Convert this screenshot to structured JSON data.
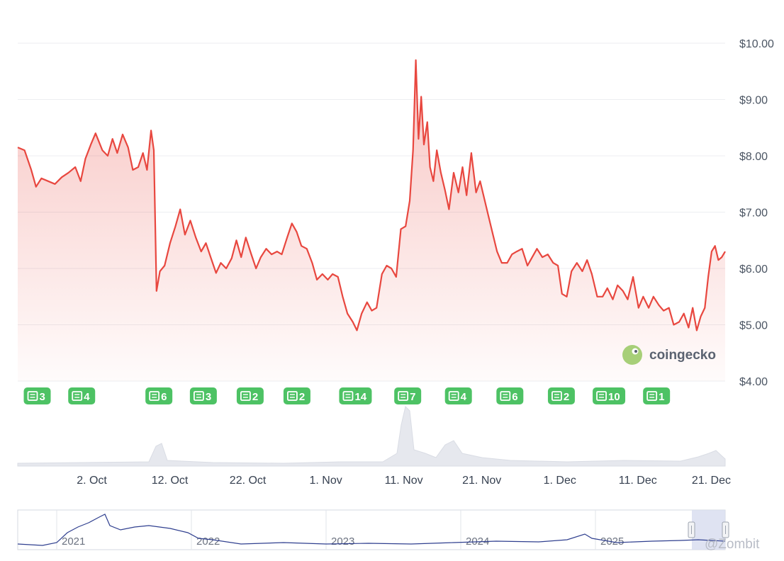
{
  "chart_data": {
    "type": "line",
    "y_axis": {
      "ticks": [
        "$10.00",
        "$9.00",
        "$8.00",
        "$7.00",
        "$6.00",
        "$5.00",
        "$4.00"
      ],
      "tick_values": [
        10,
        9,
        8,
        7,
        6,
        5,
        4
      ],
      "range": [
        4,
        10
      ],
      "grid": true
    },
    "x_axis": {
      "ticks": [
        "2. Oct",
        "12. Oct",
        "22. Oct",
        "1. Nov",
        "11. Nov",
        "21. Nov",
        "1. Dec",
        "11. Dec",
        "21. Dec"
      ],
      "tick_days": [
        2,
        12,
        22,
        32,
        42,
        52,
        62,
        72,
        82
      ],
      "range_days": [
        -7.5,
        83.2
      ]
    },
    "series": [
      {
        "color": "#e8473f",
        "points": [
          [
            -7.5,
            8.15
          ],
          [
            -6.5,
            8.1
          ],
          [
            -5.5,
            7.75
          ],
          [
            -4.8,
            7.45
          ],
          [
            -4,
            7.6
          ],
          [
            -3,
            7.55
          ],
          [
            -2,
            7.5
          ],
          [
            -1,
            7.62
          ],
          [
            0,
            7.7
          ],
          [
            1,
            7.8
          ],
          [
            1.8,
            7.55
          ],
          [
            2.5,
            7.95
          ],
          [
            3.3,
            8.2
          ],
          [
            4,
            8.4
          ],
          [
            5,
            8.1
          ],
          [
            5.8,
            8.0
          ],
          [
            6.5,
            8.3
          ],
          [
            7.2,
            8.05
          ],
          [
            8,
            8.38
          ],
          [
            8.8,
            8.15
          ],
          [
            9.5,
            7.75
          ],
          [
            10.3,
            7.8
          ],
          [
            11,
            8.05
          ],
          [
            11.6,
            7.75
          ],
          [
            12.2,
            8.45
          ],
          [
            12.6,
            8.1
          ],
          [
            13,
            5.6
          ],
          [
            13.5,
            5.95
          ],
          [
            14.2,
            6.05
          ],
          [
            15,
            6.45
          ],
          [
            15.8,
            6.75
          ],
          [
            16.5,
            7.05
          ],
          [
            17.2,
            6.6
          ],
          [
            18,
            6.85
          ],
          [
            18.8,
            6.55
          ],
          [
            19.6,
            6.3
          ],
          [
            20.3,
            6.45
          ],
          [
            21,
            6.2
          ],
          [
            21.8,
            5.92
          ],
          [
            22.5,
            6.1
          ],
          [
            23.3,
            6.0
          ],
          [
            24.1,
            6.18
          ],
          [
            24.8,
            6.5
          ],
          [
            25.5,
            6.2
          ],
          [
            26.2,
            6.55
          ],
          [
            27,
            6.25
          ],
          [
            27.7,
            6.0
          ],
          [
            28.4,
            6.2
          ],
          [
            29.2,
            6.35
          ],
          [
            30,
            6.25
          ],
          [
            30.8,
            6.3
          ],
          [
            31.5,
            6.25
          ],
          [
            32.3,
            6.55
          ],
          [
            33,
            6.8
          ],
          [
            33.7,
            6.65
          ],
          [
            34.4,
            6.4
          ],
          [
            35.2,
            6.35
          ],
          [
            36,
            6.1
          ],
          [
            36.7,
            5.8
          ],
          [
            37.5,
            5.9
          ],
          [
            38.3,
            5.8
          ],
          [
            39,
            5.9
          ],
          [
            39.8,
            5.85
          ],
          [
            40.5,
            5.5
          ],
          [
            41.2,
            5.2
          ],
          [
            42,
            5.05
          ],
          [
            42.6,
            4.9
          ],
          [
            43.3,
            5.2
          ],
          [
            44.1,
            5.4
          ],
          [
            44.8,
            5.25
          ],
          [
            45.5,
            5.3
          ],
          [
            46.3,
            5.9
          ],
          [
            47,
            6.05
          ],
          [
            47.7,
            6.0
          ],
          [
            48.4,
            5.85
          ],
          [
            49.1,
            6.7
          ],
          [
            49.8,
            6.75
          ],
          [
            50.4,
            7.2
          ],
          [
            50.9,
            8.1
          ],
          [
            51.3,
            9.7
          ],
          [
            51.7,
            8.3
          ],
          [
            52.1,
            9.05
          ],
          [
            52.5,
            8.2
          ],
          [
            53.0,
            8.6
          ],
          [
            53.4,
            7.8
          ],
          [
            53.9,
            7.55
          ],
          [
            54.4,
            8.1
          ],
          [
            55,
            7.7
          ],
          [
            55.6,
            7.4
          ],
          [
            56.2,
            7.05
          ],
          [
            56.9,
            7.7
          ],
          [
            57.6,
            7.35
          ],
          [
            58.2,
            7.8
          ],
          [
            58.8,
            7.3
          ],
          [
            59.5,
            8.05
          ],
          [
            60.2,
            7.35
          ],
          [
            60.8,
            7.55
          ],
          [
            61.4,
            7.25
          ],
          [
            62.0,
            6.95
          ],
          [
            62.7,
            6.6
          ],
          [
            63.3,
            6.3
          ],
          [
            64,
            6.1
          ],
          [
            64.8,
            6.1
          ],
          [
            65.5,
            6.25
          ],
          [
            66.2,
            6.3
          ],
          [
            67,
            6.35
          ],
          [
            67.8,
            6.05
          ],
          [
            68.5,
            6.2
          ],
          [
            69.2,
            6.35
          ],
          [
            70,
            6.2
          ],
          [
            70.8,
            6.25
          ],
          [
            71.6,
            6.1
          ],
          [
            72.3,
            6.05
          ],
          [
            72.9,
            5.55
          ],
          [
            73.6,
            5.5
          ],
          [
            74.3,
            5.95
          ],
          [
            75.1,
            6.1
          ],
          [
            75.9,
            5.95
          ],
          [
            76.6,
            6.15
          ],
          [
            77.3,
            5.9
          ],
          [
            78.1,
            5.5
          ],
          [
            78.9,
            5.5
          ],
          [
            79.6,
            5.65
          ],
          [
            80.4,
            5.45
          ],
          [
            81.1,
            5.7
          ],
          [
            81.9,
            5.6
          ],
          [
            82.6,
            5.45
          ],
          [
            83.4,
            5.85
          ],
          [
            84.2,
            5.3
          ],
          [
            84.9,
            5.5
          ],
          [
            85.7,
            5.3
          ],
          [
            86.4,
            5.5
          ],
          [
            87.2,
            5.35
          ],
          [
            87.9,
            5.25
          ],
          [
            88.7,
            5.3
          ],
          [
            89.4,
            5.0
          ],
          [
            90.2,
            5.05
          ],
          [
            90.9,
            5.2
          ],
          [
            91.6,
            4.95
          ],
          [
            92.2,
            5.3
          ],
          [
            92.8,
            4.9
          ],
          [
            93.4,
            5.15
          ],
          [
            94.0,
            5.3
          ],
          [
            94.5,
            5.85
          ],
          [
            95.0,
            6.3
          ],
          [
            95.5,
            6.4
          ],
          [
            96.0,
            6.15
          ],
          [
            96.5,
            6.2
          ],
          [
            97.0,
            6.3
          ]
        ]
      }
    ],
    "news_badges": [
      {
        "day": -5.0,
        "label": "3"
      },
      {
        "day": 0.7,
        "label": "4"
      },
      {
        "day": 10.6,
        "label": "6"
      },
      {
        "day": 16.3,
        "label": "3"
      },
      {
        "day": 22.3,
        "label": "2"
      },
      {
        "day": 28.3,
        "label": "2"
      },
      {
        "day": 35.8,
        "label": "14"
      },
      {
        "day": 42.5,
        "label": "7"
      },
      {
        "day": 49.0,
        "label": "4"
      },
      {
        "day": 55.6,
        "label": "6"
      },
      {
        "day": 62.2,
        "label": "2"
      },
      {
        "day": 68.3,
        "label": "10"
      },
      {
        "day": 74.4,
        "label": "1"
      }
    ],
    "navigator": {
      "labels": [
        "2021",
        "2022",
        "2023",
        "2024",
        "2025"
      ]
    }
  },
  "branding": {
    "logo_text": "coingecko",
    "watermark": "@Zombit"
  },
  "colors": {
    "line": "#e8473f",
    "badge": "#4dc264",
    "grid": "#eceef1",
    "navigator_line": "#2f3f8f",
    "navigator_selection": "#d7dcef"
  }
}
